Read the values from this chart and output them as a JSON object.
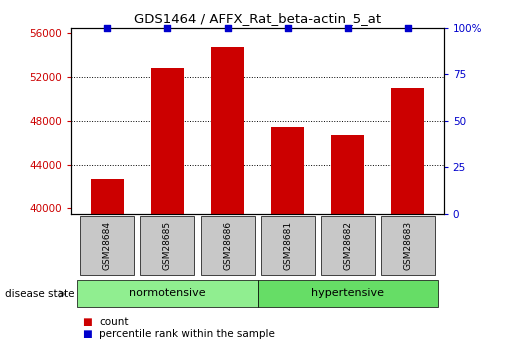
{
  "title": "GDS1464 / AFFX_Rat_beta-actin_5_at",
  "samples": [
    "GSM28684",
    "GSM28685",
    "GSM28686",
    "GSM28681",
    "GSM28682",
    "GSM28683"
  ],
  "counts": [
    42700,
    52800,
    54700,
    47400,
    46700,
    51000
  ],
  "percentile_ranks": [
    100,
    100,
    100,
    100,
    100,
    100
  ],
  "ylim_left": [
    39500,
    56500
  ],
  "ylim_right": [
    0,
    100
  ],
  "yticks_left": [
    40000,
    44000,
    48000,
    52000,
    56000
  ],
  "yticks_right": [
    0,
    25,
    50,
    75,
    100
  ],
  "ytick_labels_right": [
    "0",
    "25",
    "50",
    "75",
    "100%"
  ],
  "bar_color": "#cc0000",
  "percentile_color": "#0000cc",
  "normotensive_label": "normotensive",
  "hypertensive_label": "hypertensive",
  "disease_state_label": "disease state",
  "legend_count_label": "count",
  "legend_percentile_label": "percentile rank within the sample",
  "bg_color": "#ffffff",
  "sample_box_color": "#c8c8c8",
  "normotensive_color": "#90ee90",
  "hypertensive_color": "#66dd66",
  "bar_width": 0.55
}
